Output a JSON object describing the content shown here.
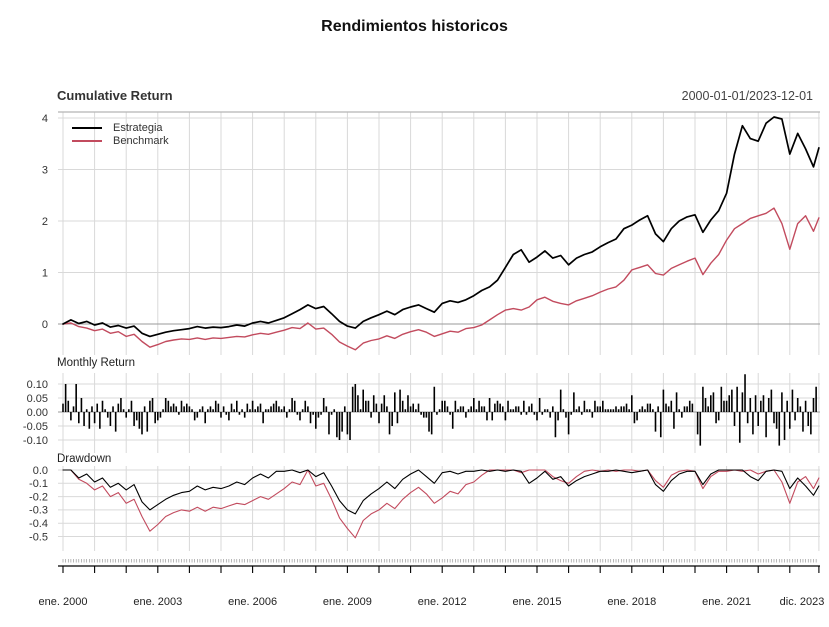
{
  "title": "Rendimientos historicos",
  "header": {
    "left": "Cumulative Return",
    "right": "2000-01-01/2023-12-01"
  },
  "legend": [
    {
      "label": "Estrategia",
      "color": "#000000"
    },
    {
      "label": "Benchmark",
      "color": "#C24B5E"
    }
  ],
  "panels": {
    "monthly_label": "Monthly Return",
    "drawdown_label": "Drawdown"
  },
  "xaxis": {
    "labels": [
      "ene. 2000",
      "ene. 2003",
      "ene. 2006",
      "ene. 2009",
      "ene. 2012",
      "ene. 2015",
      "ene. 2018",
      "ene. 2021",
      "dic. 2023"
    ],
    "tick_years": [
      2000,
      2003,
      2006,
      2009,
      2012,
      2015,
      2018,
      2021,
      2023.92
    ]
  },
  "colors": {
    "estrategia": "#000000",
    "benchmark": "#C24B5E",
    "grid": "#d9d9d9",
    "zero_line": "#9a9a9a",
    "axis": "#000000",
    "tick_text": "#333333"
  },
  "chart_data": [
    {
      "type": "line",
      "title": "Cumulative Return",
      "x_range": "2000-01-01/2023-12-01",
      "ylim": [
        -0.6,
        4.12
      ],
      "ytick_labels": [
        "4",
        "3",
        "2",
        "1",
        "0"
      ],
      "yticks": [
        4,
        3,
        2,
        1,
        0
      ],
      "legend_position": "topleft",
      "grid": true,
      "x": [
        2000,
        2000.25,
        2000.5,
        2000.75,
        2001,
        2001.25,
        2001.5,
        2001.75,
        2002,
        2002.25,
        2002.5,
        2002.75,
        2003,
        2003.25,
        2003.5,
        2003.75,
        2004,
        2004.25,
        2004.5,
        2004.75,
        2005,
        2005.25,
        2005.5,
        2005.75,
        2006,
        2006.25,
        2006.5,
        2006.75,
        2007,
        2007.25,
        2007.5,
        2007.75,
        2008,
        2008.25,
        2008.5,
        2008.75,
        2009,
        2009.25,
        2009.5,
        2009.75,
        2010,
        2010.25,
        2010.5,
        2010.75,
        2011,
        2011.25,
        2011.5,
        2011.75,
        2012,
        2012.25,
        2012.5,
        2012.75,
        2013,
        2013.25,
        2013.5,
        2013.75,
        2014,
        2014.25,
        2014.5,
        2014.75,
        2015,
        2015.25,
        2015.5,
        2015.75,
        2016,
        2016.25,
        2016.5,
        2016.75,
        2017,
        2017.25,
        2017.5,
        2017.75,
        2018,
        2018.25,
        2018.5,
        2018.75,
        2019,
        2019.25,
        2019.5,
        2019.75,
        2020,
        2020.25,
        2020.5,
        2020.75,
        2021,
        2021.25,
        2021.5,
        2021.75,
        2022,
        2022.25,
        2022.5,
        2022.75,
        2023,
        2023.25,
        2023.5,
        2023.75,
        2023.92
      ],
      "series": [
        {
          "name": "Estrategia",
          "color": "#000000",
          "values": [
            0.0,
            0.08,
            0.01,
            0.05,
            -0.02,
            0.02,
            -0.06,
            -0.03,
            -0.08,
            -0.04,
            -0.18,
            -0.24,
            -0.2,
            -0.16,
            -0.13,
            -0.11,
            -0.09,
            -0.05,
            -0.08,
            -0.06,
            -0.07,
            -0.05,
            -0.02,
            -0.04,
            0.02,
            0.05,
            0.02,
            0.07,
            0.12,
            0.2,
            0.28,
            0.37,
            0.3,
            0.34,
            0.2,
            0.05,
            -0.04,
            -0.08,
            0.05,
            0.12,
            0.18,
            0.25,
            0.18,
            0.28,
            0.33,
            0.37,
            0.3,
            0.23,
            0.4,
            0.45,
            0.42,
            0.47,
            0.55,
            0.65,
            0.72,
            0.85,
            1.1,
            1.35,
            1.44,
            1.2,
            1.3,
            1.42,
            1.28,
            1.33,
            1.15,
            1.28,
            1.35,
            1.4,
            1.5,
            1.58,
            1.65,
            1.85,
            1.92,
            2.02,
            2.1,
            1.75,
            1.6,
            1.85,
            2.0,
            2.08,
            2.12,
            1.78,
            2.02,
            2.2,
            2.54,
            3.3,
            3.85,
            3.6,
            3.55,
            3.9,
            4.02,
            3.98,
            3.3,
            3.7,
            3.4,
            3.05,
            3.42
          ]
        },
        {
          "name": "Benchmark",
          "color": "#C24B5E",
          "values": [
            0.0,
            0.02,
            -0.05,
            -0.08,
            -0.13,
            -0.1,
            -0.18,
            -0.15,
            -0.24,
            -0.2,
            -0.34,
            -0.45,
            -0.4,
            -0.34,
            -0.31,
            -0.29,
            -0.3,
            -0.27,
            -0.3,
            -0.27,
            -0.28,
            -0.26,
            -0.24,
            -0.25,
            -0.21,
            -0.18,
            -0.2,
            -0.16,
            -0.12,
            -0.07,
            -0.09,
            0.02,
            -0.1,
            -0.08,
            -0.2,
            -0.35,
            -0.43,
            -0.5,
            -0.37,
            -0.32,
            -0.29,
            -0.23,
            -0.28,
            -0.2,
            -0.15,
            -0.11,
            -0.16,
            -0.24,
            -0.19,
            -0.14,
            -0.16,
            -0.09,
            -0.07,
            -0.02,
            0.08,
            0.18,
            0.27,
            0.3,
            0.27,
            0.33,
            0.47,
            0.52,
            0.44,
            0.4,
            0.37,
            0.45,
            0.5,
            0.55,
            0.62,
            0.68,
            0.72,
            0.85,
            1.05,
            1.1,
            1.15,
            0.98,
            0.95,
            1.08,
            1.15,
            1.22,
            1.28,
            0.96,
            1.18,
            1.35,
            1.63,
            1.85,
            1.95,
            2.05,
            2.1,
            2.15,
            2.25,
            1.95,
            1.45,
            1.95,
            2.1,
            1.8,
            2.06
          ]
        }
      ]
    },
    {
      "type": "bar",
      "title": "Monthly Return",
      "start": "2000-01",
      "end": "2023-11",
      "ylim": [
        -0.146,
        0.139
      ],
      "ytick_labels": [
        "0.10",
        "0.05",
        "0.00",
        "-0.05",
        "-0.10"
      ],
      "yticks": [
        0.1,
        0.05,
        0.0,
        -0.05,
        -0.1
      ],
      "bar_color": "#000000",
      "values": [
        0.03,
        0.1,
        0.04,
        -0.03,
        0.02,
        0.1,
        -0.04,
        0.05,
        -0.05,
        0.01,
        -0.06,
        0.02,
        -0.04,
        0.03,
        -0.06,
        0.04,
        0.01,
        -0.02,
        -0.05,
        0.02,
        -0.07,
        0.03,
        0.05,
        0.01,
        -0.02,
        0.01,
        0.04,
        -0.05,
        -0.03,
        -0.06,
        -0.08,
        0.02,
        -0.07,
        0.04,
        0.05,
        -0.04,
        -0.03,
        -0.02,
        0.01,
        0.05,
        0.04,
        0.02,
        0.03,
        0.02,
        -0.01,
        0.04,
        0.02,
        0.03,
        0.02,
        0.01,
        -0.03,
        -0.02,
        0.01,
        0.02,
        -0.04,
        0.01,
        0.02,
        0.01,
        0.04,
        0.03,
        -0.02,
        0.02,
        -0.01,
        -0.03,
        0.03,
        0.01,
        0.04,
        -0.01,
        0.01,
        -0.02,
        0.03,
        0.01,
        0.04,
        0.01,
        0.02,
        0.03,
        -0.04,
        0.01,
        0.01,
        0.02,
        0.03,
        0.04,
        0.02,
        0.01,
        0.02,
        -0.02,
        0.01,
        0.05,
        0.04,
        -0.01,
        -0.03,
        0.01,
        0.04,
        0.02,
        -0.04,
        -0.01,
        -0.06,
        -0.02,
        -0.01,
        0.05,
        0.02,
        -0.08,
        -0.01,
        0.01,
        -0.09,
        -0.1,
        -0.07,
        0.02,
        -0.08,
        -0.1,
        0.09,
        0.1,
        0.06,
        0.01,
        0.08,
        0.04,
        0.04,
        -0.02,
        0.06,
        0.03,
        -0.04,
        0.03,
        0.06,
        0.02,
        -0.08,
        -0.05,
        0.07,
        -0.04,
        0.08,
        0.04,
        0.01,
        0.06,
        0.02,
        0.03,
        0.01,
        0.03,
        -0.01,
        -0.02,
        -0.02,
        -0.07,
        -0.08,
        0.09,
        -0.01,
        0.01,
        0.04,
        0.04,
        0.02,
        -0.01,
        -0.06,
        0.04,
        0.01,
        0.02,
        0.02,
        -0.02,
        0.01,
        0.02,
        0.05,
        0.01,
        0.04,
        0.02,
        0.02,
        -0.03,
        0.05,
        -0.03,
        0.03,
        0.04,
        0.03,
        0.02,
        -0.03,
        0.04,
        0.01,
        0.01,
        0.02,
        0.02,
        -0.01,
        0.04,
        -0.01,
        0.02,
        0.03,
        -0.01,
        -0.03,
        0.05,
        -0.01,
        0.01,
        0.01,
        -0.02,
        0.02,
        -0.09,
        -0.03,
        0.08,
        0.01,
        -0.02,
        -0.08,
        -0.01,
        0.07,
        0.01,
        0.02,
        -0.01,
        0.04,
        0.01,
        0.01,
        -0.02,
        0.04,
        0.02,
        0.02,
        0.04,
        0.01,
        0.01,
        0.01,
        0.01,
        0.02,
        0.01,
        0.02,
        0.02,
        0.03,
        0.01,
        0.06,
        -0.04,
        -0.03,
        0.01,
        0.02,
        0.01,
        0.03,
        0.03,
        0.01,
        -0.07,
        0.02,
        -0.09,
        0.08,
        0.03,
        0.02,
        0.04,
        -0.06,
        0.07,
        0.01,
        -0.02,
        0.02,
        0.02,
        0.04,
        0.03,
        0.0,
        -0.08,
        -0.12,
        0.09,
        0.05,
        0.02,
        0.06,
        0.07,
        -0.04,
        -0.03,
        0.09,
        0.04,
        0.04,
        0.06,
        0.08,
        -0.05,
        0.09,
        -0.11,
        0.07,
        0.135,
        -0.04,
        0.05,
        -0.08,
        0.06,
        -0.05,
        0.04,
        0.06,
        -0.09,
        0.05,
        0.08,
        -0.04,
        -0.06,
        -0.12,
        0.07,
        -0.1,
        0.04,
        -0.06,
        0.08,
        -0.03,
        0.05,
        0.02,
        -0.07,
        0.04,
        -0.05,
        -0.08,
        0.05,
        0.09
      ]
    },
    {
      "type": "line",
      "title": "Drawdown",
      "ylim": [
        -0.61,
        0.03
      ],
      "ytick_labels": [
        "0.0",
        "-0.1",
        "-0.2",
        "-0.3",
        "-0.4",
        "-0.5"
      ],
      "yticks": [
        0.0,
        -0.1,
        -0.2,
        -0.3,
        -0.4,
        -0.5
      ],
      "x": [
        2000,
        2000.25,
        2000.5,
        2000.75,
        2001,
        2001.25,
        2001.5,
        2001.75,
        2002,
        2002.25,
        2002.5,
        2002.75,
        2003,
        2003.25,
        2003.5,
        2003.75,
        2004,
        2004.25,
        2004.5,
        2004.75,
        2005,
        2005.25,
        2005.5,
        2005.75,
        2006,
        2006.25,
        2006.5,
        2006.75,
        2007,
        2007.25,
        2007.5,
        2007.75,
        2008,
        2008.25,
        2008.5,
        2008.75,
        2009,
        2009.25,
        2009.5,
        2009.75,
        2010,
        2010.25,
        2010.5,
        2010.75,
        2011,
        2011.25,
        2011.5,
        2011.75,
        2012,
        2012.25,
        2012.5,
        2012.75,
        2013,
        2013.25,
        2013.5,
        2013.75,
        2014,
        2014.25,
        2014.5,
        2014.75,
        2015,
        2015.25,
        2015.5,
        2015.75,
        2016,
        2016.25,
        2016.5,
        2016.75,
        2017,
        2017.25,
        2017.5,
        2017.75,
        2018,
        2018.25,
        2018.5,
        2018.75,
        2019,
        2019.25,
        2019.5,
        2019.75,
        2020,
        2020.25,
        2020.5,
        2020.75,
        2021,
        2021.25,
        2021.5,
        2021.75,
        2022,
        2022.25,
        2022.5,
        2022.75,
        2023,
        2023.25,
        2023.5,
        2023.75,
        2023.92
      ],
      "series": [
        {
          "name": "Estrategia",
          "color": "#000000",
          "values": [
            0.0,
            0.0,
            -0.06,
            -0.03,
            -0.09,
            -0.06,
            -0.13,
            -0.1,
            -0.15,
            -0.11,
            -0.24,
            -0.3,
            -0.26,
            -0.22,
            -0.19,
            -0.17,
            -0.16,
            -0.12,
            -0.15,
            -0.13,
            -0.14,
            -0.12,
            -0.09,
            -0.11,
            -0.06,
            -0.03,
            -0.06,
            -0.01,
            -0.01,
            0.0,
            -0.02,
            0.0,
            -0.05,
            -0.02,
            -0.12,
            -0.23,
            -0.3,
            -0.33,
            -0.23,
            -0.18,
            -0.14,
            -0.09,
            -0.14,
            -0.07,
            -0.03,
            0.0,
            -0.05,
            -0.1,
            -0.02,
            -0.01,
            -0.03,
            -0.01,
            -0.01,
            0.0,
            -0.01,
            0.0,
            -0.01,
            0.0,
            -0.01,
            -0.1,
            -0.06,
            -0.01,
            -0.07,
            -0.05,
            -0.12,
            -0.08,
            -0.05,
            -0.03,
            -0.01,
            -0.01,
            0.0,
            -0.01,
            -0.02,
            -0.01,
            0.0,
            -0.11,
            -0.16,
            -0.08,
            -0.03,
            -0.01,
            -0.01,
            -0.11,
            -0.03,
            0.0,
            0.0,
            0.0,
            0.0,
            -0.05,
            -0.08,
            -0.01,
            0.0,
            -0.01,
            -0.14,
            -0.06,
            -0.12,
            -0.19,
            -0.12
          ]
        },
        {
          "name": "Benchmark",
          "color": "#C24B5E",
          "values": [
            0.0,
            0.0,
            -0.07,
            -0.1,
            -0.15,
            -0.12,
            -0.2,
            -0.17,
            -0.25,
            -0.22,
            -0.35,
            -0.46,
            -0.41,
            -0.35,
            -0.32,
            -0.3,
            -0.31,
            -0.28,
            -0.31,
            -0.28,
            -0.29,
            -0.27,
            -0.25,
            -0.26,
            -0.23,
            -0.2,
            -0.22,
            -0.18,
            -0.14,
            -0.09,
            -0.11,
            0.0,
            -0.12,
            -0.1,
            -0.22,
            -0.36,
            -0.44,
            -0.51,
            -0.38,
            -0.33,
            -0.3,
            -0.25,
            -0.29,
            -0.22,
            -0.17,
            -0.13,
            -0.18,
            -0.25,
            -0.21,
            -0.16,
            -0.18,
            -0.11,
            -0.09,
            -0.04,
            0.0,
            0.0,
            0.0,
            0.0,
            -0.02,
            0.0,
            0.0,
            0.0,
            -0.05,
            -0.08,
            -0.1,
            -0.05,
            -0.01,
            0.0,
            -0.01,
            0.0,
            -0.01,
            0.0,
            0.0,
            -0.01,
            0.0,
            -0.08,
            -0.13,
            -0.04,
            -0.01,
            0.0,
            -0.01,
            -0.14,
            -0.05,
            -0.01,
            -0.01,
            0.0,
            -0.01,
            0.0,
            -0.03,
            -0.01,
            0.0,
            -0.09,
            -0.25,
            -0.09,
            -0.05,
            -0.14,
            -0.06
          ]
        }
      ]
    }
  ]
}
